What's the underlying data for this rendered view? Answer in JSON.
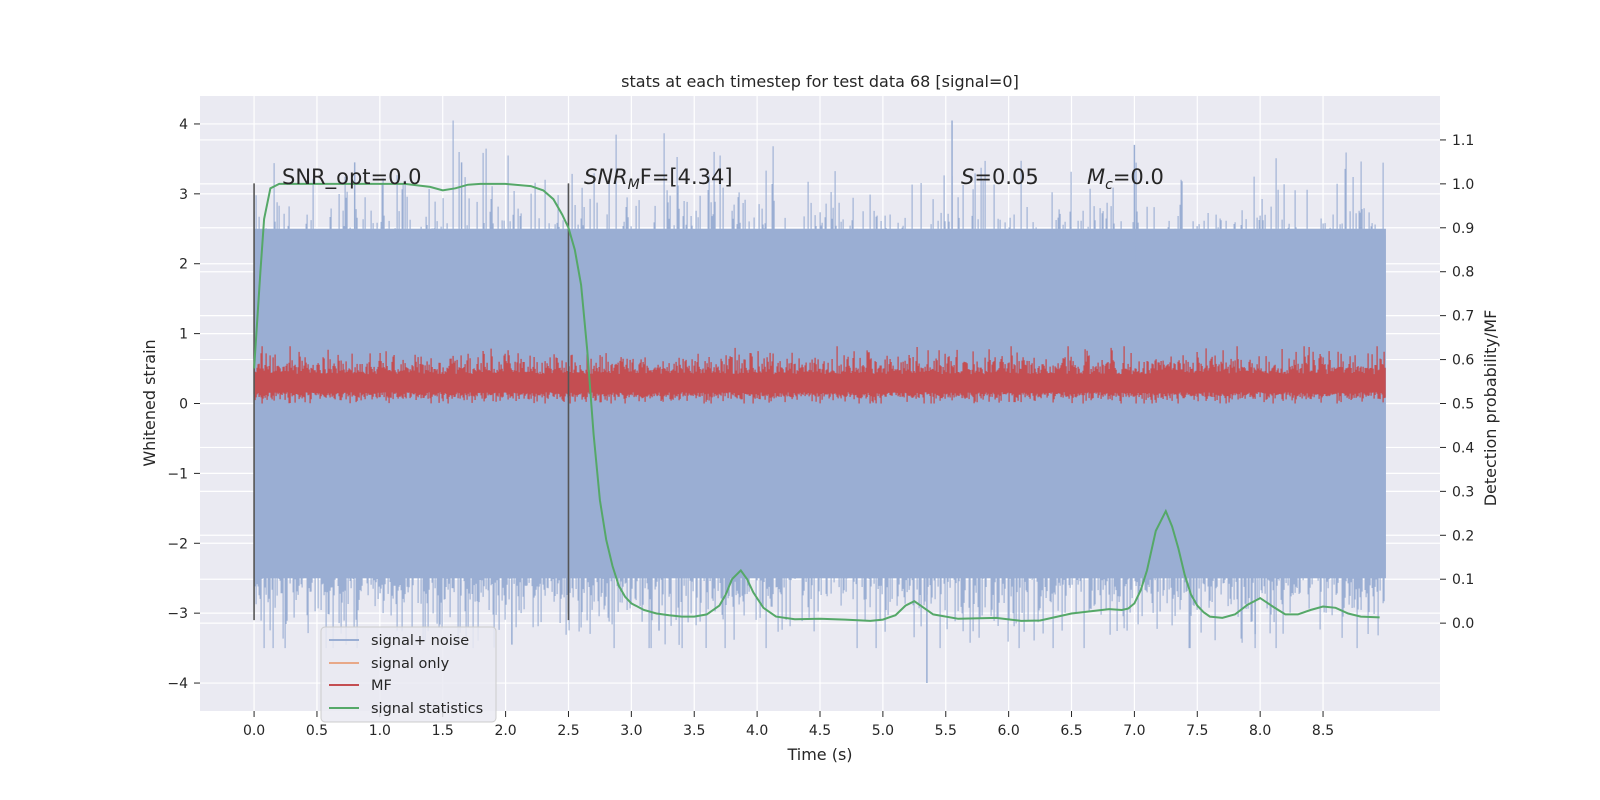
{
  "chart_data": {
    "type": "line",
    "title": "stats at each timestep for test data 68 [signal=0]",
    "xlabel": "Time (s)",
    "ylabel": "Whitened strain",
    "y2label": "Detection probability/MF",
    "xlim": [
      -0.43,
      9.43
    ],
    "ylim": [
      -4.4,
      4.4
    ],
    "y2lim": [
      -0.2,
      1.2
    ],
    "x_ticks": [
      "0.0",
      "0.5",
      "1.0",
      "1.5",
      "2.0",
      "2.5",
      "3.0",
      "3.5",
      "4.0",
      "4.5",
      "5.0",
      "5.5",
      "6.0",
      "6.5",
      "7.0",
      "7.5",
      "8.0",
      "8.5"
    ],
    "y_ticks": [
      "4",
      "3",
      "2",
      "1",
      "0",
      "−1",
      "−2",
      "−3",
      "−4"
    ],
    "y2_ticks": [
      "1.1",
      "1.0",
      "0.9",
      "0.8",
      "0.7",
      "0.6",
      "0.5",
      "0.4",
      "0.3",
      "0.2",
      "0.1",
      "0.0"
    ],
    "grid": true,
    "legend_position": "lower-left",
    "vlines": [
      0.0,
      2.5
    ],
    "vline_range": [
      -3.1,
      3.15
    ],
    "annotations": [
      {
        "id": "snr-opt",
        "text": "SNR_opt=0.0",
        "x": 0.2,
        "y": 3.2
      },
      {
        "id": "snr-mf",
        "main": "SNR",
        "sub": "M",
        "rest": "F=[4.34]",
        "x": 2.6,
        "y": 3.2
      },
      {
        "id": "s-value",
        "main": "S",
        "rest": "=0.05",
        "x": 5.6,
        "y": 3.2
      },
      {
        "id": "mc-value",
        "main": "M",
        "sub": "c",
        "rest": "=0.0",
        "x": 6.6,
        "y": 3.2
      }
    ],
    "series": [
      {
        "name": "signal+ noise",
        "color": "#9aaed3",
        "axis": "left",
        "x_range": [
          0,
          9.0
        ],
        "amplitude_envelope": [
          -3.5,
          4.05
        ],
        "typical_range": [
          -2.5,
          2.5
        ]
      },
      {
        "name": "signal only",
        "color": "#e8a888",
        "axis": "left",
        "values": []
      },
      {
        "name": "MF",
        "color": "#c44e52",
        "axis": "left",
        "x_range": [
          0,
          9.0
        ],
        "typical_range": [
          0.05,
          0.65
        ]
      },
      {
        "name": "signal statistics",
        "color": "#55a868",
        "axis": "right",
        "x": [
          0.0,
          0.05,
          0.08,
          0.13,
          0.2,
          0.4,
          0.8,
          1.2,
          1.4,
          1.5,
          1.6,
          1.7,
          1.8,
          2.0,
          2.2,
          2.3,
          2.38,
          2.45,
          2.5,
          2.55,
          2.6,
          2.65,
          2.7,
          2.75,
          2.8,
          2.85,
          2.9,
          2.95,
          3.0,
          3.1,
          3.2,
          3.3,
          3.4,
          3.5,
          3.6,
          3.7,
          3.75,
          3.8,
          3.87,
          3.92,
          3.97,
          4.05,
          4.15,
          4.3,
          4.5,
          4.7,
          4.9,
          5.0,
          5.1,
          5.18,
          5.25,
          5.3,
          5.4,
          5.6,
          5.9,
          6.1,
          6.25,
          6.5,
          6.8,
          6.9,
          6.95,
          7.0,
          7.05,
          7.1,
          7.17,
          7.25,
          7.3,
          7.35,
          7.4,
          7.45,
          7.5,
          7.55,
          7.6,
          7.7,
          7.8,
          7.9,
          8.0,
          8.1,
          8.2,
          8.3,
          8.4,
          8.5,
          8.6,
          8.7,
          8.8,
          8.95
        ],
        "values": [
          0.58,
          0.8,
          0.92,
          0.99,
          1.0,
          1.0,
          1.0,
          1.0,
          0.993,
          0.985,
          0.99,
          0.998,
          1.0,
          1.0,
          0.995,
          0.985,
          0.965,
          0.93,
          0.9,
          0.85,
          0.77,
          0.62,
          0.43,
          0.28,
          0.19,
          0.13,
          0.085,
          0.06,
          0.045,
          0.03,
          0.022,
          0.018,
          0.015,
          0.015,
          0.02,
          0.04,
          0.065,
          0.1,
          0.12,
          0.1,
          0.07,
          0.035,
          0.015,
          0.009,
          0.01,
          0.008,
          0.005,
          0.008,
          0.018,
          0.04,
          0.05,
          0.04,
          0.02,
          0.01,
          0.012,
          0.005,
          0.006,
          0.022,
          0.032,
          0.03,
          0.033,
          0.045,
          0.075,
          0.12,
          0.21,
          0.255,
          0.22,
          0.17,
          0.11,
          0.065,
          0.04,
          0.025,
          0.015,
          0.012,
          0.02,
          0.042,
          0.057,
          0.038,
          0.02,
          0.02,
          0.03,
          0.038,
          0.035,
          0.022,
          0.015,
          0.013
        ]
      }
    ]
  }
}
